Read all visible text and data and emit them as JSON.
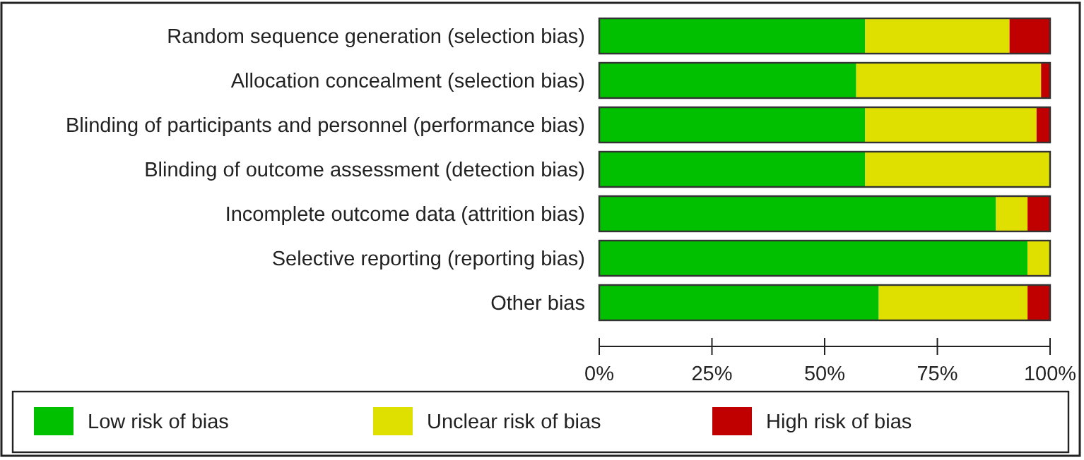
{
  "chart_data": {
    "type": "bar",
    "orientation": "horizontal",
    "stacked": true,
    "categories": [
      "Random sequence generation (selection bias)",
      "Allocation concealment (selection bias)",
      "Blinding of participants and personnel (performance bias)",
      "Blinding of outcome assessment (detection bias)",
      "Incomplete outcome data (attrition bias)",
      "Selective reporting (reporting bias)",
      "Other bias"
    ],
    "series": [
      {
        "name": "Low risk of bias",
        "color": "#00c000",
        "values": [
          59,
          57,
          59,
          59,
          88,
          95,
          62
        ]
      },
      {
        "name": "Unclear risk of bias",
        "color": "#e0e000",
        "values": [
          32,
          41,
          38,
          41,
          7,
          5,
          33
        ]
      },
      {
        "name": "High risk of bias",
        "color": "#c00000",
        "values": [
          9,
          2,
          3,
          0,
          5,
          0,
          5
        ]
      }
    ],
    "xlim": [
      0,
      100
    ],
    "xticks": [
      {
        "value": 0,
        "label": "0%"
      },
      {
        "value": 25,
        "label": "25%"
      },
      {
        "value": 50,
        "label": "50%"
      },
      {
        "value": 75,
        "label": "75%"
      },
      {
        "value": 100,
        "label": "100%"
      }
    ],
    "grid": false,
    "legend": "bottom"
  }
}
